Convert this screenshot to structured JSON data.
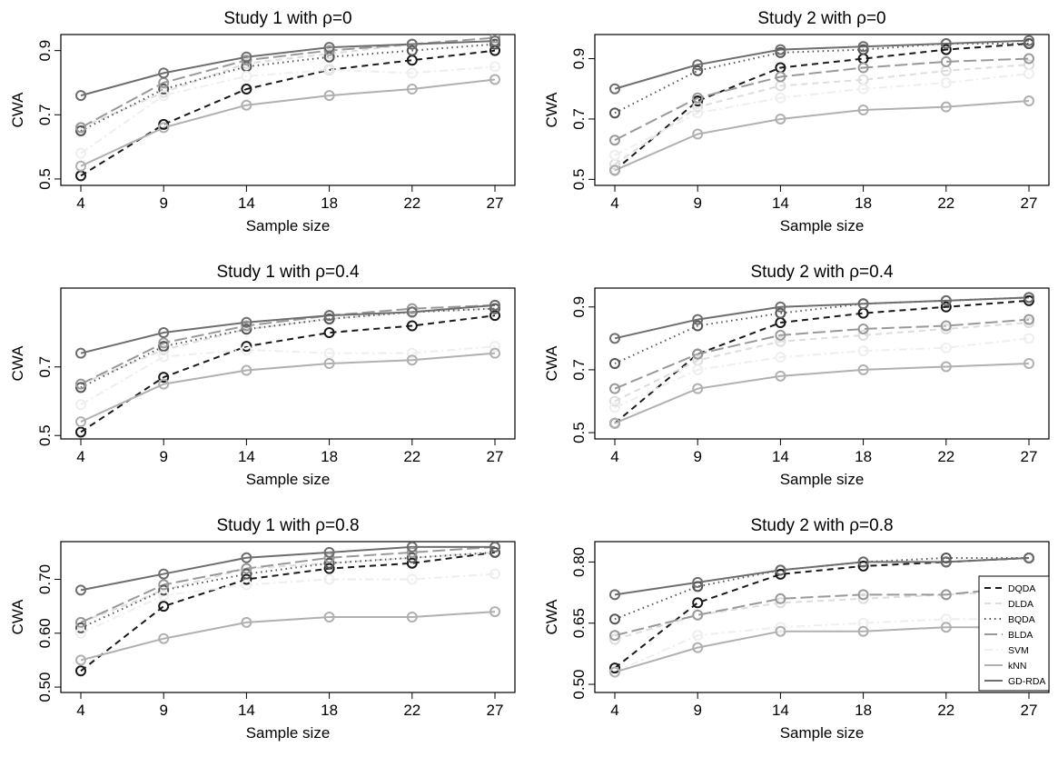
{
  "styles": {
    "DQDA": {
      "color": "#1a1a1a",
      "dash": "7,5"
    },
    "DLDA": {
      "color": "#dddddd",
      "dash": "7,5"
    },
    "BQDA": {
      "color": "#555555",
      "dash": "1.5,4"
    },
    "BLDA": {
      "color": "#999999",
      "dash": "14,5"
    },
    "SVM": {
      "color": "#eeeeee",
      "dash": "9,4,2,4"
    },
    "kNN": {
      "color": "#b0b0b0",
      "dash": ""
    },
    "GD-RDA": {
      "color": "#6e6e6e",
      "dash": ""
    }
  },
  "chart_data": [
    {
      "type": "line",
      "title": "Study 1 with ρ=0",
      "xlabel": "Sample size",
      "ylabel": "CWA",
      "x": [
        4,
        9,
        14,
        18,
        22,
        27
      ],
      "ylim": [
        0.48,
        0.95
      ],
      "yticks": [
        0.5,
        0.7,
        0.9
      ],
      "ytick_labels": [
        "0.5",
        "0.7",
        "0.9"
      ],
      "series": [
        {
          "name": "DQDA",
          "values": [
            0.51,
            0.67,
            0.78,
            0.84,
            0.87,
            0.9
          ]
        },
        {
          "name": "DLDA",
          "values": [
            0.66,
            0.77,
            0.86,
            0.89,
            0.92,
            0.93
          ]
        },
        {
          "name": "BQDA",
          "values": [
            0.65,
            0.78,
            0.85,
            0.88,
            0.9,
            0.92
          ]
        },
        {
          "name": "BLDA",
          "values": [
            0.66,
            0.8,
            0.87,
            0.9,
            0.92,
            0.94
          ]
        },
        {
          "name": "SVM",
          "values": [
            0.58,
            0.76,
            0.82,
            0.84,
            0.83,
            0.85
          ]
        },
        {
          "name": "kNN",
          "values": [
            0.54,
            0.66,
            0.73,
            0.76,
            0.78,
            0.81
          ]
        },
        {
          "name": "GD-RDA",
          "values": [
            0.76,
            0.83,
            0.88,
            0.91,
            0.92,
            0.93
          ]
        }
      ]
    },
    {
      "type": "line",
      "title": "Study 2 with ρ=0",
      "xlabel": "Sample size",
      "ylabel": "CWA",
      "x": [
        4,
        9,
        14,
        18,
        22,
        27
      ],
      "ylim": [
        0.48,
        0.98
      ],
      "yticks": [
        0.5,
        0.7,
        0.9
      ],
      "ytick_labels": [
        "0.5",
        "0.7",
        "0.9"
      ],
      "series": [
        {
          "name": "DQDA",
          "values": [
            0.53,
            0.76,
            0.87,
            0.9,
            0.93,
            0.95
          ]
        },
        {
          "name": "DLDA",
          "values": [
            0.55,
            0.74,
            0.81,
            0.83,
            0.86,
            0.88
          ]
        },
        {
          "name": "BQDA",
          "values": [
            0.72,
            0.86,
            0.92,
            0.93,
            0.95,
            0.95
          ]
        },
        {
          "name": "BLDA",
          "values": [
            0.63,
            0.77,
            0.84,
            0.87,
            0.89,
            0.9
          ]
        },
        {
          "name": "SVM",
          "values": [
            0.58,
            0.72,
            0.77,
            0.8,
            0.82,
            0.85
          ]
        },
        {
          "name": "kNN",
          "values": [
            0.53,
            0.65,
            0.7,
            0.73,
            0.74,
            0.76
          ]
        },
        {
          "name": "GD-RDA",
          "values": [
            0.8,
            0.88,
            0.93,
            0.94,
            0.95,
            0.96
          ]
        }
      ]
    },
    {
      "type": "line",
      "title": "Study 1 with ρ=0.4",
      "xlabel": "Sample size",
      "ylabel": "CWA",
      "x": [
        4,
        9,
        14,
        18,
        22,
        27
      ],
      "ylim": [
        0.49,
        0.93
      ],
      "yticks": [
        0.5,
        0.7
      ],
      "ytick_labels": [
        "0.5",
        "0.7"
      ],
      "series": [
        {
          "name": "DQDA",
          "values": [
            0.51,
            0.67,
            0.76,
            0.8,
            0.82,
            0.85
          ]
        },
        {
          "name": "DLDA",
          "values": [
            0.65,
            0.75,
            0.81,
            0.84,
            0.86,
            0.87
          ]
        },
        {
          "name": "BQDA",
          "values": [
            0.64,
            0.76,
            0.81,
            0.84,
            0.86,
            0.87
          ]
        },
        {
          "name": "BLDA",
          "values": [
            0.65,
            0.77,
            0.82,
            0.85,
            0.87,
            0.88
          ]
        },
        {
          "name": "SVM",
          "values": [
            0.59,
            0.73,
            0.75,
            0.74,
            0.74,
            0.76
          ]
        },
        {
          "name": "kNN",
          "values": [
            0.54,
            0.65,
            0.69,
            0.71,
            0.72,
            0.74
          ]
        },
        {
          "name": "GD-RDA",
          "values": [
            0.74,
            0.8,
            0.83,
            0.85,
            0.86,
            0.88
          ]
        }
      ]
    },
    {
      "type": "line",
      "title": "Study 2 with ρ=0.4",
      "xlabel": "Sample size",
      "ylabel": "CWA",
      "x": [
        4,
        9,
        14,
        18,
        22,
        27
      ],
      "ylim": [
        0.48,
        0.96
      ],
      "yticks": [
        0.5,
        0.7,
        0.9
      ],
      "ytick_labels": [
        "0.5",
        "0.7",
        "0.9"
      ],
      "series": [
        {
          "name": "DQDA",
          "values": [
            0.53,
            0.75,
            0.85,
            0.88,
            0.9,
            0.92
          ]
        },
        {
          "name": "DLDA",
          "values": [
            0.6,
            0.73,
            0.79,
            0.81,
            0.83,
            0.85
          ]
        },
        {
          "name": "BQDA",
          "values": [
            0.72,
            0.84,
            0.88,
            0.91,
            0.92,
            0.93
          ]
        },
        {
          "name": "BLDA",
          "values": [
            0.64,
            0.75,
            0.81,
            0.83,
            0.84,
            0.86
          ]
        },
        {
          "name": "SVM",
          "values": [
            0.58,
            0.7,
            0.74,
            0.76,
            0.77,
            0.8
          ]
        },
        {
          "name": "kNN",
          "values": [
            0.53,
            0.64,
            0.68,
            0.7,
            0.71,
            0.72
          ]
        },
        {
          "name": "GD-RDA",
          "values": [
            0.8,
            0.86,
            0.9,
            0.91,
            0.92,
            0.93
          ]
        }
      ]
    },
    {
      "type": "line",
      "title": "Study 1 with ρ=0.8",
      "xlabel": "Sample size",
      "ylabel": "CWA",
      "x": [
        4,
        9,
        14,
        18,
        22,
        27
      ],
      "ylim": [
        0.49,
        0.77
      ],
      "yticks": [
        0.5,
        0.6,
        0.7
      ],
      "ytick_labels": [
        "0.50",
        "0.60",
        "0.70"
      ],
      "series": [
        {
          "name": "DQDA",
          "values": [
            0.53,
            0.65,
            0.7,
            0.72,
            0.73,
            0.75
          ]
        },
        {
          "name": "DLDA",
          "values": [
            0.62,
            0.68,
            0.72,
            0.73,
            0.74,
            0.75
          ]
        },
        {
          "name": "BQDA",
          "values": [
            0.61,
            0.68,
            0.71,
            0.73,
            0.74,
            0.75
          ]
        },
        {
          "name": "BLDA",
          "values": [
            0.62,
            0.69,
            0.72,
            0.74,
            0.75,
            0.76
          ]
        },
        {
          "name": "SVM",
          "values": [
            0.6,
            0.67,
            0.69,
            0.7,
            0.7,
            0.71
          ]
        },
        {
          "name": "kNN",
          "values": [
            0.55,
            0.59,
            0.62,
            0.63,
            0.63,
            0.64
          ]
        },
        {
          "name": "GD-RDA",
          "values": [
            0.68,
            0.71,
            0.74,
            0.75,
            0.76,
            0.76
          ]
        }
      ]
    },
    {
      "type": "line",
      "title": "Study 2 with ρ=0.8",
      "xlabel": "Sample size",
      "ylabel": "CWA",
      "x": [
        4,
        9,
        14,
        18,
        22,
        27
      ],
      "ylim": [
        0.48,
        0.85
      ],
      "yticks": [
        0.5,
        0.65,
        0.8
      ],
      "ytick_labels": [
        "0.50",
        "0.65",
        "0.80"
      ],
      "legend": "right",
      "series": [
        {
          "name": "DQDA",
          "values": [
            0.54,
            0.7,
            0.77,
            0.79,
            0.8,
            0.81
          ]
        },
        {
          "name": "DLDA",
          "values": [
            0.61,
            0.67,
            0.7,
            0.71,
            0.72,
            0.73
          ]
        },
        {
          "name": "BQDA",
          "values": [
            0.66,
            0.74,
            0.78,
            0.8,
            0.81,
            0.81
          ]
        },
        {
          "name": "BLDA",
          "values": [
            0.62,
            0.67,
            0.71,
            0.72,
            0.72,
            0.74
          ]
        },
        {
          "name": "SVM",
          "values": [
            0.53,
            0.62,
            0.64,
            0.65,
            0.66,
            0.66
          ]
        },
        {
          "name": "kNN",
          "values": [
            0.53,
            0.59,
            0.63,
            0.63,
            0.64,
            0.64
          ]
        },
        {
          "name": "GD-RDA",
          "values": [
            0.72,
            0.75,
            0.78,
            0.8,
            0.8,
            0.81
          ]
        }
      ]
    }
  ]
}
